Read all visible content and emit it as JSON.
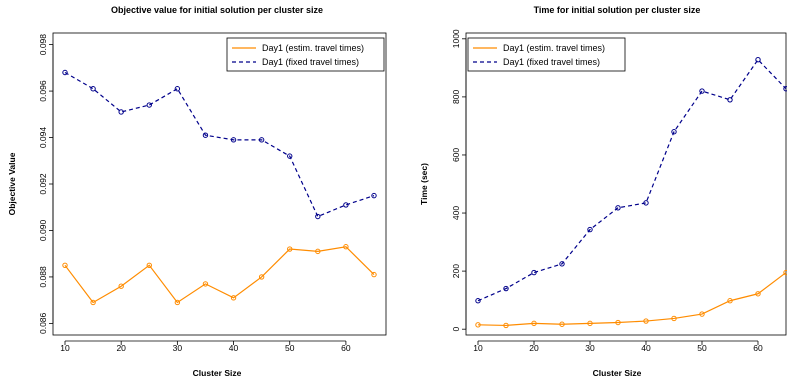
{
  "chart_data": [
    {
      "type": "line",
      "title": "Objective value for initial solution per cluster size",
      "xlabel": "Cluster Size",
      "ylabel": "Objective Value",
      "x": [
        10,
        15,
        20,
        25,
        30,
        35,
        40,
        45,
        50,
        55,
        60,
        65
      ],
      "xlim": [
        10,
        65
      ],
      "ylim": [
        0.0855,
        0.0985
      ],
      "xticks": [
        "10",
        "20",
        "30",
        "40",
        "50",
        "60"
      ],
      "yticks": [
        "0.086",
        "0.088",
        "0.090",
        "0.092",
        "0.094",
        "0.096",
        "0.098"
      ],
      "legend_position": "top-right",
      "series": [
        {
          "name": "Day1 (estim. travel times)",
          "color": "#ff8c00",
          "line_style": "solid",
          "values": [
            0.0885,
            0.0869,
            0.0876,
            0.0885,
            0.0869,
            0.0877,
            0.0871,
            0.088,
            0.0892,
            0.0891,
            0.0893,
            0.0881
          ]
        },
        {
          "name": "Day1 (fixed travel times)",
          "color": "#00008b",
          "line_style": "dashed",
          "values": [
            0.0968,
            0.0961,
            0.0951,
            0.0954,
            0.0961,
            0.0941,
            0.0939,
            0.0939,
            0.0932,
            0.0906,
            0.0911,
            0.0915
          ]
        }
      ]
    },
    {
      "type": "line",
      "title": "Time for initial solution per cluster size",
      "xlabel": "Cluster Size",
      "ylabel": "Time (sec)",
      "x": [
        10,
        15,
        20,
        25,
        30,
        35,
        40,
        45,
        50,
        55,
        60,
        65
      ],
      "xlim": [
        10,
        65
      ],
      "ylim": [
        -20,
        1020
      ],
      "xticks": [
        "10",
        "20",
        "30",
        "40",
        "50",
        "60"
      ],
      "yticks": [
        "0",
        "200",
        "400",
        "600",
        "800",
        "1000"
      ],
      "legend_position": "top-left",
      "series": [
        {
          "name": "Day1 (estim. travel times)",
          "color": "#ff8c00",
          "line_style": "solid",
          "values": [
            15,
            13,
            20,
            17,
            20,
            23,
            28,
            37,
            52,
            98,
            122,
            195
          ]
        },
        {
          "name": "Day1 (fixed travel times)",
          "color": "#00008b",
          "line_style": "dashed",
          "values": [
            98,
            140,
            195,
            225,
            343,
            418,
            435,
            680,
            820,
            790,
            928,
            828
          ]
        }
      ]
    }
  ]
}
